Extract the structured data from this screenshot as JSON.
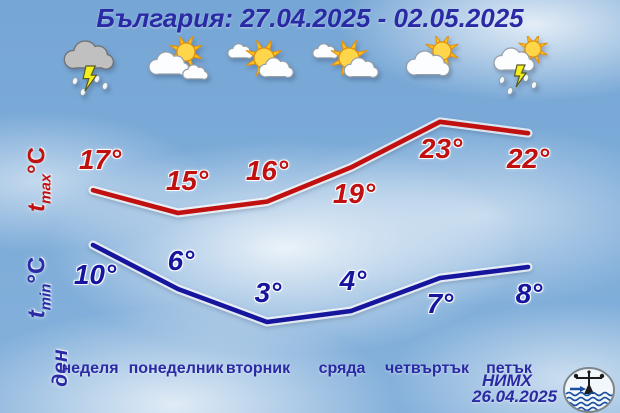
{
  "title": "България: 27.04.2025 - 02.05.2025",
  "axis": {
    "tmax": {
      "symbol": "t",
      "subscript": "max",
      "unit": "°C"
    },
    "tmin": {
      "symbol": "t",
      "subscript": "min",
      "unit": "°C"
    },
    "day": "ден"
  },
  "footer": {
    "organization": "НИМХ",
    "date": "26.04.2025",
    "logo": "nimh-logo"
  },
  "colors": {
    "title_text": "#2a2aa4",
    "tmax_line": "#c01010",
    "tmin_line": "#15159e",
    "day_text": "#2a2aa4",
    "sky_base": "#7aa9d6"
  },
  "chart_data": {
    "type": "line",
    "title": "България: 27.04.2025 - 02.05.2025",
    "categories": [
      "неделя",
      "понеделник",
      "вторник",
      "сряда",
      "четвъртък",
      "петък"
    ],
    "series": [
      {
        "name": "tmax",
        "label": "tmax °C",
        "color": "#c01010",
        "values": [
          17,
          15,
          16,
          19,
          23,
          22
        ]
      },
      {
        "name": "tmin",
        "label": "tmin °C",
        "color": "#15159e",
        "values": [
          10,
          6,
          3,
          4,
          7,
          8
        ]
      }
    ],
    "unit_suffix": "°",
    "icons": [
      "thunderstorm-icon",
      "sun-behind-clouds-icon",
      "sun-and-clouds-icon",
      "sun-and-clouds-icon",
      "sun-behind-cloud-icon",
      "thunderstorm-with-sun-icon"
    ],
    "xlabel": "ден",
    "ylabel": "°C",
    "grid": false,
    "legend_position": "none"
  }
}
